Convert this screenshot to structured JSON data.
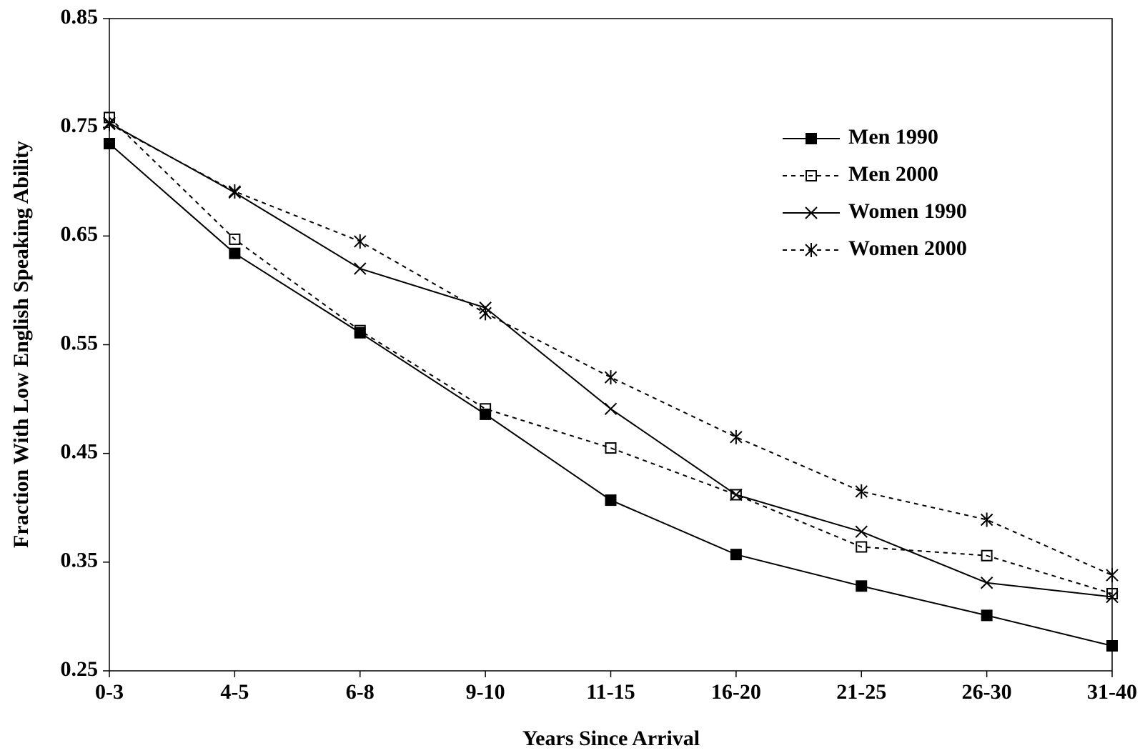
{
  "chart_data": {
    "type": "line",
    "x_label": "Years Since Arrival",
    "y_label": "Fraction With Low English Speaking Ability",
    "categories": [
      "0-3",
      "4-5",
      "6-8",
      "9-10",
      "11-15",
      "16-20",
      "21-25",
      "26-30",
      "31-40"
    ],
    "ylim": [
      0.25,
      0.85
    ],
    "yticks": [
      0.25,
      0.35,
      0.45,
      0.55,
      0.65,
      0.75,
      0.85
    ],
    "grid": false,
    "legend": "upper right",
    "series": [
      {
        "name": "Men 1990",
        "color": "#000000",
        "dash": false,
        "marker": "filled-square",
        "values": [
          0.735,
          0.634,
          0.561,
          0.486,
          0.407,
          0.357,
          0.328,
          0.301,
          0.273
        ]
      },
      {
        "name": "Men 2000",
        "color": "#000000",
        "dash": true,
        "marker": "open-square",
        "values": [
          0.759,
          0.647,
          0.563,
          0.491,
          0.455,
          0.412,
          0.364,
          0.356,
          0.321
        ]
      },
      {
        "name": "Women 1990",
        "color": "#000000",
        "dash": false,
        "marker": "cross",
        "values": [
          0.754,
          0.69,
          0.62,
          0.584,
          0.491,
          0.412,
          0.378,
          0.331,
          0.318
        ]
      },
      {
        "name": "Women 2000",
        "color": "#000000",
        "dash": true,
        "marker": "asterisk",
        "values": [
          0.753,
          0.691,
          0.645,
          0.579,
          0.52,
          0.465,
          0.415,
          0.389,
          0.338
        ]
      }
    ]
  }
}
